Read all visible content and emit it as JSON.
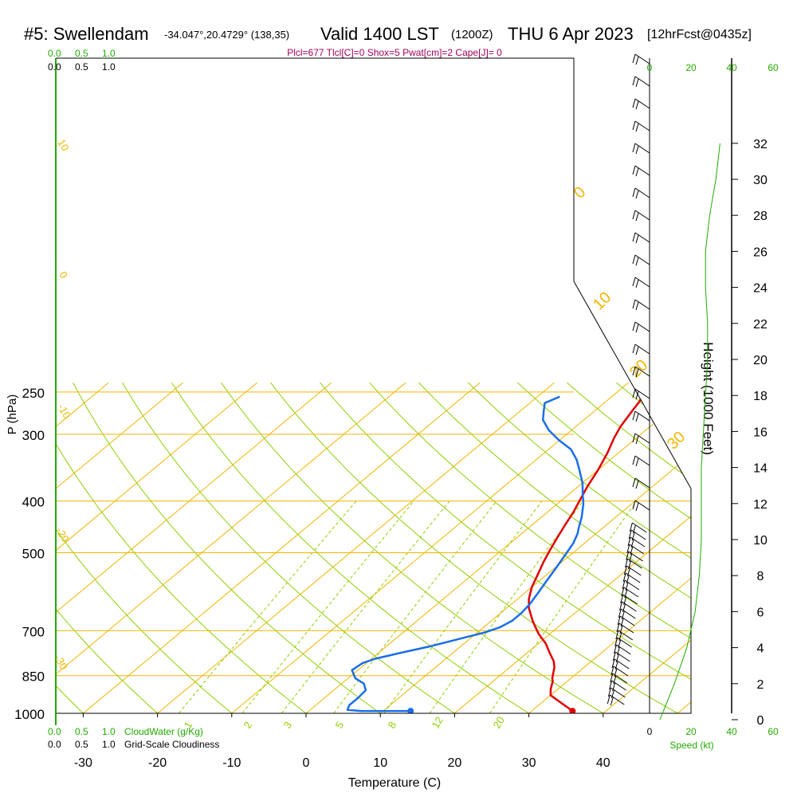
{
  "header": {
    "station": "#5: Swellendam",
    "coords": "-34.047°,20.4729° (138,35)",
    "valid": "Valid 1400 LST",
    "zulu": "(1200Z)",
    "date": "THU 6 Apr 2023",
    "forecast": "[12hrFcst@0435z]"
  },
  "stats": "Plcl=677 Tlcl[C]=0 Shox=5 Pwat[cm]=2 Cape[J]= 0",
  "scales": {
    "cloudwater_ticks": [
      "0.0",
      "0.5",
      "1.0"
    ],
    "cloudiness_ticks": [
      "0.0",
      "0.5",
      "1.0"
    ],
    "cloudwater_label": "CloudWater (g/Kg)",
    "cloudiness_label": "Grid-Scale Cloudiness",
    "speed_ticks": [
      "0",
      "20",
      "40",
      "60"
    ],
    "speed_label": "Speed (kt)"
  },
  "colors": {
    "isotherm": "#f2b600",
    "dry_adiabat": "#8fcf00",
    "mixing_ratio": "#8fcf00",
    "temperature": "#e00000",
    "dewpoint": "#1a6ee8",
    "green_text": "#22aa00",
    "stats_text": "#a0005a"
  },
  "chart_data": {
    "type": "line",
    "title": "",
    "xlabel": "Temperature (C)",
    "ylabel": "P (hPa)",
    "y2label": "Height (1000 Feet)",
    "xlim": [
      -35,
      47
    ],
    "ylim": [
      1000,
      250
    ],
    "x_ticks": [
      -30,
      -20,
      -10,
      0,
      10,
      20,
      30,
      40
    ],
    "p_ticks": [
      1000,
      850,
      700,
      500,
      400,
      300,
      250
    ],
    "height_ticks": [
      0,
      2,
      4,
      6,
      8,
      10,
      12,
      14,
      16,
      18,
      20,
      22,
      24,
      26,
      28,
      30,
      32
    ],
    "mixing_ratio_labels": [
      "1",
      "2",
      "3",
      "5",
      "8",
      "12",
      "20"
    ],
    "dry_adiabat_labels": [
      "0",
      "10",
      "20",
      "30"
    ],
    "isotherm_labels": [
      "10",
      "0",
      "-10",
      "-20",
      "-30"
    ],
    "series": [
      {
        "name": "",
        "color": "#e00000",
        "points": [
          [
            35.5,
            990
          ],
          [
            33,
            960
          ],
          [
            30,
            925
          ],
          [
            29,
            900
          ],
          [
            28,
            870
          ],
          [
            27.5,
            860
          ],
          [
            26,
            820
          ],
          [
            25,
            800
          ],
          [
            23,
            770
          ],
          [
            21,
            740
          ],
          [
            18.5,
            710
          ],
          [
            17,
            690
          ],
          [
            15.5,
            670
          ],
          [
            13,
            635
          ],
          [
            11.5,
            610
          ],
          [
            10,
            580
          ],
          [
            8.8,
            550
          ],
          [
            7.5,
            520
          ],
          [
            6.5,
            495
          ],
          [
            5.5,
            470
          ],
          [
            4.5,
            445
          ],
          [
            3.5,
            420
          ],
          [
            2.5,
            400
          ],
          [
            1.2,
            375
          ],
          [
            0,
            350
          ],
          [
            -1.5,
            325
          ],
          [
            -3,
            305
          ],
          [
            -4,
            290
          ],
          [
            -5,
            270
          ],
          [
            -5.5,
            260
          ],
          [
            -6,
            255
          ]
        ]
      },
      {
        "name": "",
        "color": "#1a6ee8",
        "points": [
          [
            13.7,
            990
          ],
          [
            7,
            990
          ],
          [
            5,
            985
          ],
          [
            4.5,
            965
          ],
          [
            4.5,
            935
          ],
          [
            4.3,
            905
          ],
          [
            3,
            880
          ],
          [
            1,
            860
          ],
          [
            -0.8,
            830
          ],
          [
            -0.5,
            805
          ],
          [
            0.5,
            790
          ],
          [
            3,
            770
          ],
          [
            6,
            748
          ],
          [
            9,
            722
          ],
          [
            11,
            705
          ],
          [
            12.2,
            690
          ],
          [
            12.8,
            670
          ],
          [
            12.8,
            650
          ],
          [
            12.5,
            625
          ],
          [
            11.8,
            595
          ],
          [
            11,
            565
          ],
          [
            10.2,
            535
          ],
          [
            9.3,
            505
          ],
          [
            8.5,
            480
          ],
          [
            7.5,
            460
          ],
          [
            6.8,
            450
          ],
          [
            5.5,
            430
          ],
          [
            3.5,
            405
          ],
          [
            2,
            390
          ],
          [
            0,
            370
          ],
          [
            -2.5,
            350
          ],
          [
            -4.5,
            335
          ],
          [
            -7,
            320
          ],
          [
            -10,
            308
          ],
          [
            -13,
            295
          ],
          [
            -15.5,
            282
          ],
          [
            -17,
            270
          ],
          [
            -18,
            262
          ],
          [
            -17,
            255
          ]
        ]
      }
    ],
    "markers": [
      {
        "series": "temperature",
        "t": 35.5,
        "p": 990
      },
      {
        "series": "dewpoint",
        "t": 13.7,
        "p": 990
      }
    ],
    "height_profile_kft": [
      0,
      2,
      4,
      6,
      8,
      10,
      12,
      14,
      16,
      18,
      20,
      22,
      24,
      26,
      28,
      30,
      32
    ],
    "wind_speed_kt": [
      5,
      12,
      18,
      22,
      24,
      25,
      25,
      25,
      26,
      27,
      28,
      28,
      27,
      27,
      29,
      32,
      34
    ]
  }
}
